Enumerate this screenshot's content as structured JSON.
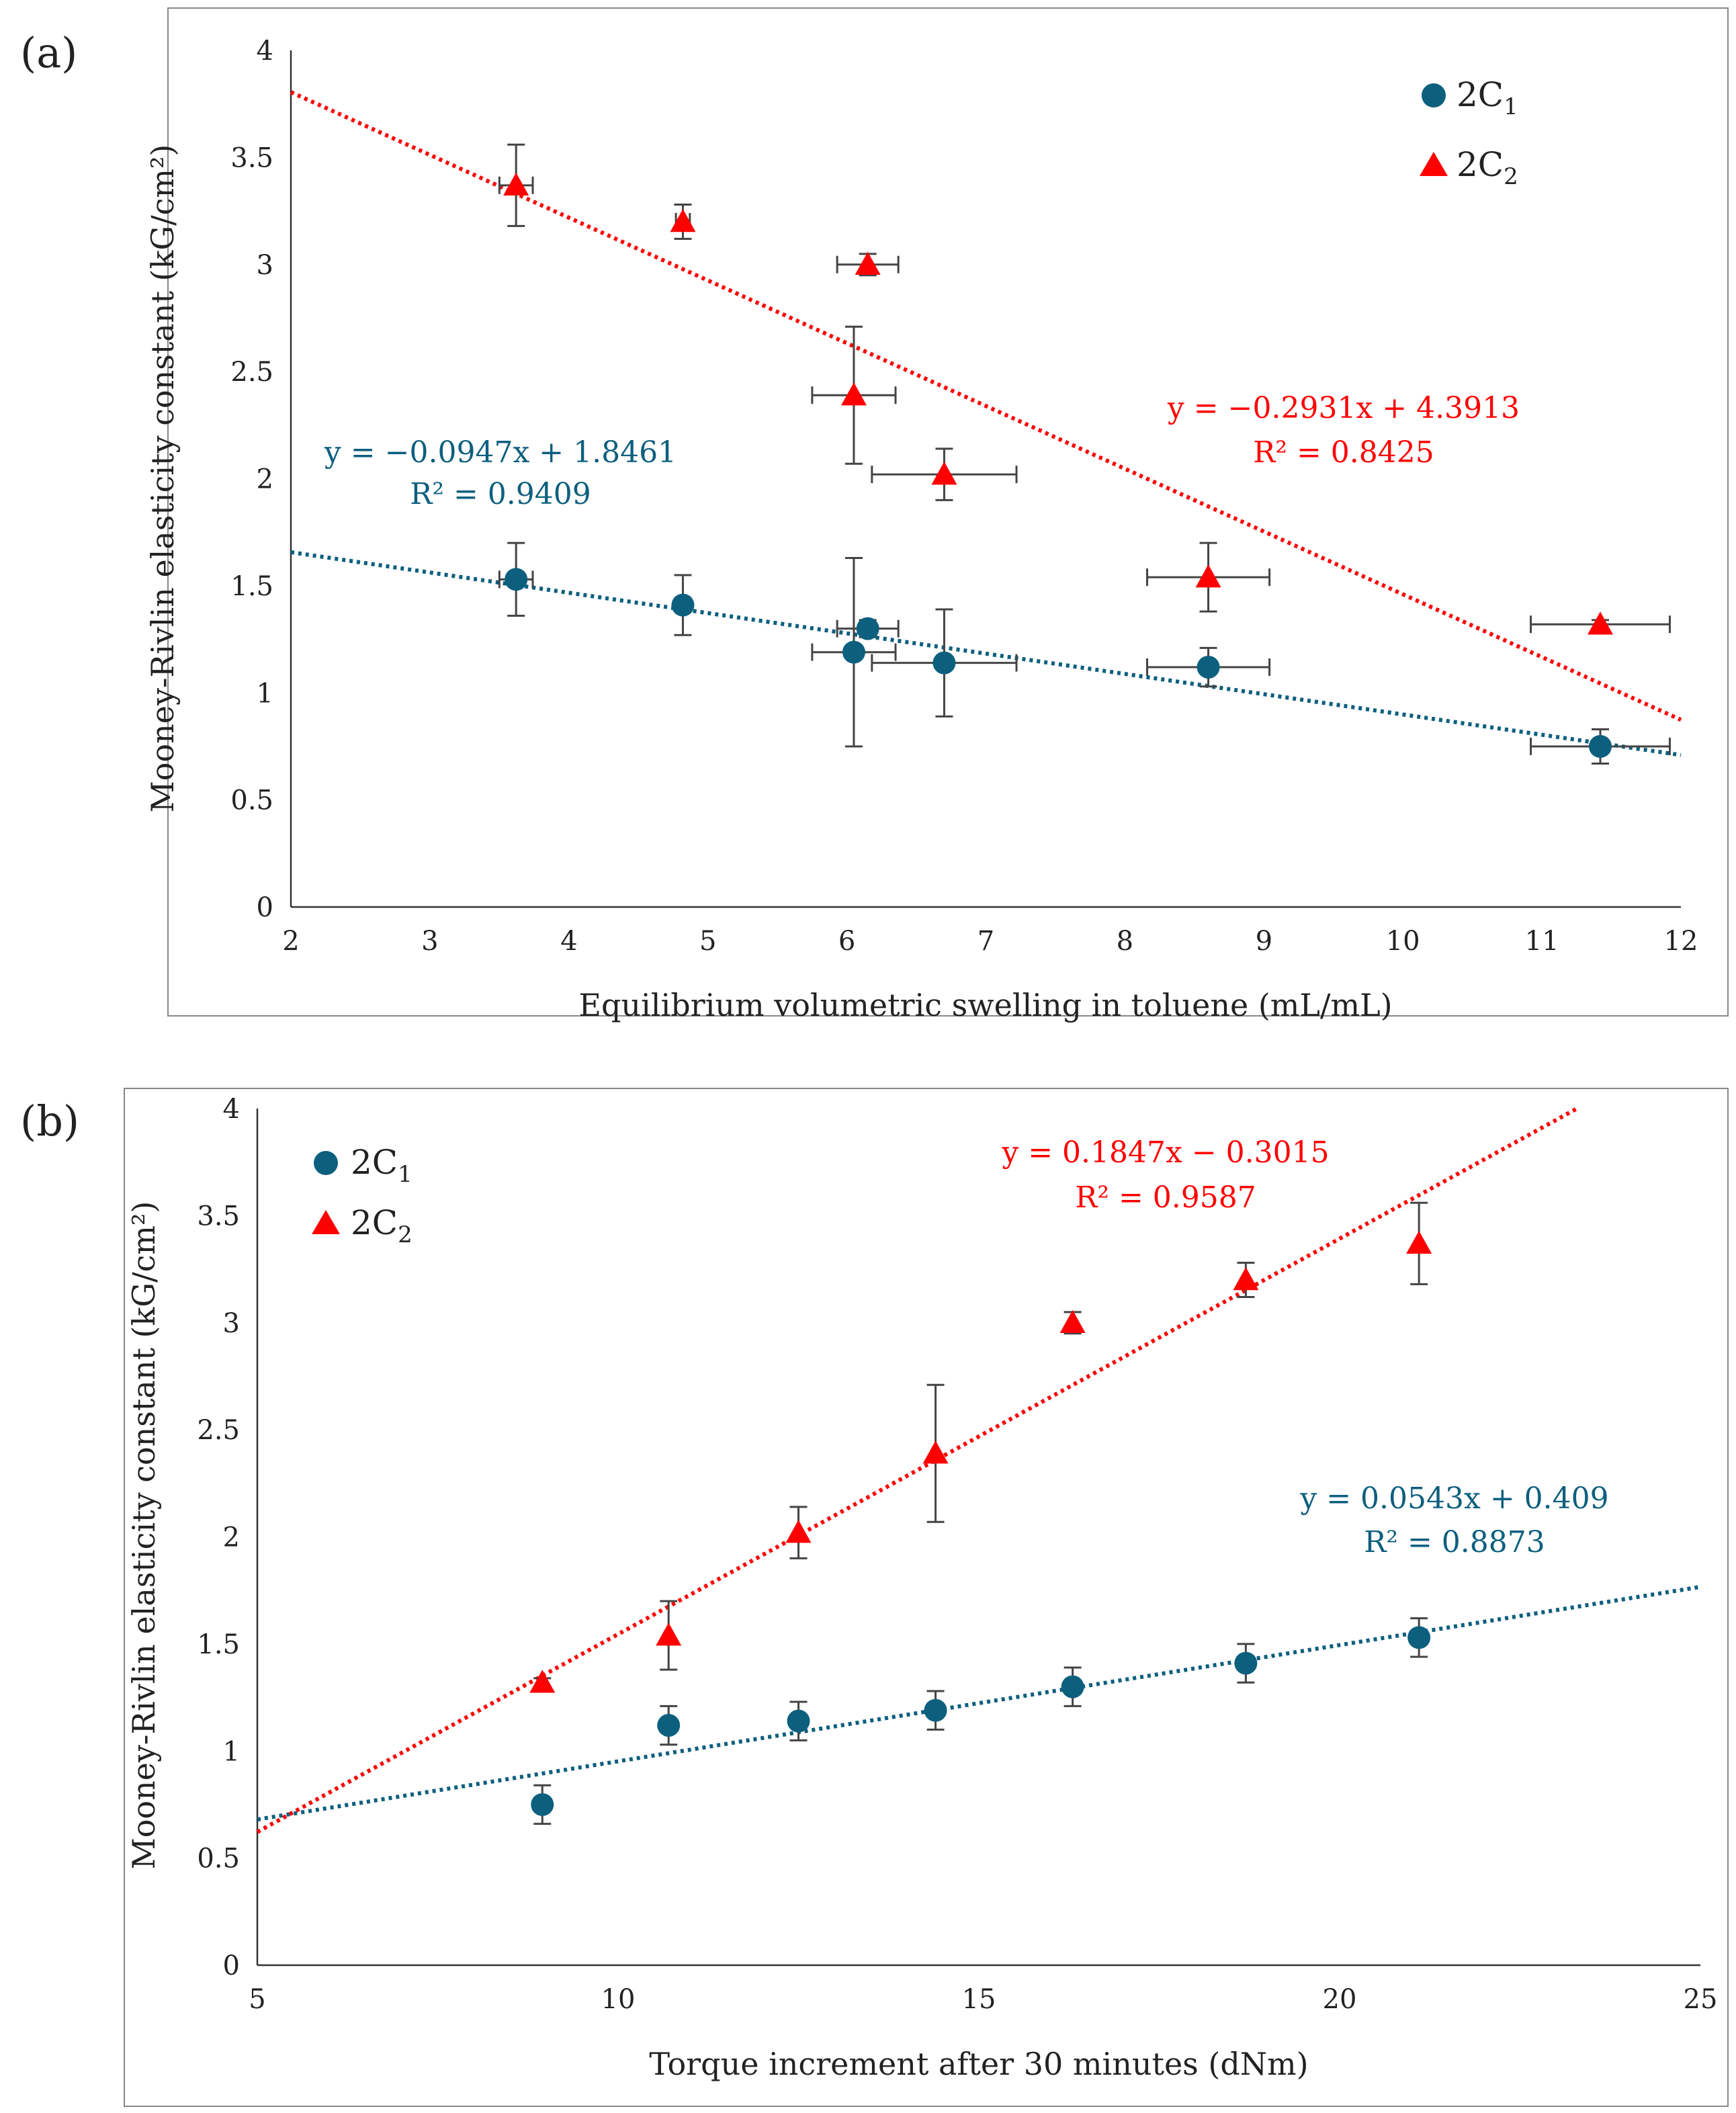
{
  "colors": {
    "c1": "#0d5f7e",
    "c2": "#ff0000",
    "error_bar": "#444444",
    "frame": "#888888"
  },
  "chart_data": [
    {
      "panel_label": "(a)",
      "type": "scatter",
      "xlabel": "Equilibrium volumetric swelling in toluene (mL/mL)",
      "ylabel": "Mooney-Rivlin elasticity constant (kG/cm²)",
      "xlim": [
        2,
        12
      ],
      "ylim": [
        0,
        4
      ],
      "xticks": [
        "2",
        "3",
        "4",
        "5",
        "6",
        "7",
        "8",
        "9",
        "10",
        "11",
        "12"
      ],
      "yticks": [
        "0",
        "0.5",
        "1",
        "1.5",
        "2",
        "2.5",
        "3",
        "3.5",
        "4"
      ],
      "legend": {
        "position": "top-right",
        "entries": [
          {
            "symbol": "circle",
            "base": "2C",
            "sub": "1"
          },
          {
            "symbol": "triangle",
            "base": "2C",
            "sub": "2"
          }
        ]
      },
      "series": [
        {
          "name": "2C1",
          "marker": "circle",
          "color_key": "c1",
          "x": [
            3.62,
            4.82,
            6.15,
            6.05,
            6.7,
            8.6,
            11.42
          ],
          "y": [
            1.53,
            1.41,
            1.3,
            1.19,
            1.14,
            1.12,
            0.75
          ],
          "yerr": [
            0.17,
            0.14,
            0.04,
            0.44,
            0.25,
            0.09,
            0.08
          ],
          "xerr": [
            0.12,
            0.05,
            0.22,
            0.3,
            0.52,
            0.44,
            0.5
          ],
          "trend": {
            "slope": -0.0947,
            "intercept": 1.8461,
            "equation": "y = −0.0947x + 1.8461",
            "r2": "R² = 0.9409"
          }
        },
        {
          "name": "2C2",
          "marker": "triangle",
          "color_key": "c2",
          "x": [
            3.62,
            4.82,
            6.15,
            6.05,
            6.7,
            8.6,
            11.42
          ],
          "y": [
            3.37,
            3.2,
            3.0,
            2.39,
            2.02,
            1.54,
            1.32
          ],
          "yerr": [
            0.19,
            0.08,
            0.05,
            0.32,
            0.12,
            0.16,
            0.02
          ],
          "xerr": [
            0.12,
            0.05,
            0.22,
            0.3,
            0.52,
            0.44,
            0.5
          ],
          "trend": {
            "slope": -0.2931,
            "intercept": 4.3913,
            "equation": "y = −0.2931x + 4.3913",
            "r2": "R² = 0.8425"
          }
        }
      ]
    },
    {
      "panel_label": "(b)",
      "type": "scatter",
      "xlabel": "Torque increment after 30 minutes (dNm)",
      "ylabel": "Mooney-Rivlin elasticity constant (kG/cm²)",
      "xlim": [
        5,
        25
      ],
      "ylim": [
        0,
        4
      ],
      "xticks": [
        "5",
        "10",
        "15",
        "20",
        "25"
      ],
      "yticks": [
        "0",
        "0.5",
        "1",
        "1.5",
        "2",
        "2.5",
        "3",
        "3.5",
        "4"
      ],
      "legend": {
        "position": "top-left",
        "entries": [
          {
            "symbol": "circle",
            "base": "2C",
            "sub": "1"
          },
          {
            "symbol": "triangle",
            "base": "2C",
            "sub": "2"
          }
        ]
      },
      "series": [
        {
          "name": "2C1",
          "marker": "circle",
          "color_key": "c1",
          "x": [
            8.95,
            10.7,
            12.5,
            14.4,
            16.3,
            18.7,
            21.1
          ],
          "y": [
            0.75,
            1.12,
            1.14,
            1.19,
            1.3,
            1.41,
            1.53
          ],
          "yerr": [
            0.09,
            0.09,
            0.09,
            0.09,
            0.09,
            0.09,
            0.09
          ],
          "trend": {
            "slope": 0.0543,
            "intercept": 0.409,
            "equation": "y = 0.0543x + 0.409",
            "r2": "R² = 0.8873"
          }
        },
        {
          "name": "2C2",
          "marker": "triangle",
          "color_key": "c2",
          "x": [
            8.95,
            10.7,
            12.5,
            14.4,
            16.3,
            18.7,
            21.1
          ],
          "y": [
            1.32,
            1.54,
            2.02,
            2.39,
            3.0,
            3.2,
            3.37
          ],
          "yerr": [
            0.02,
            0.16,
            0.12,
            0.32,
            0.05,
            0.08,
            0.19
          ],
          "trend": {
            "slope": 0.1847,
            "intercept": -0.3015,
            "equation": "y = 0.1847x − 0.3015",
            "r2": "R² = 0.9587"
          }
        }
      ]
    }
  ]
}
